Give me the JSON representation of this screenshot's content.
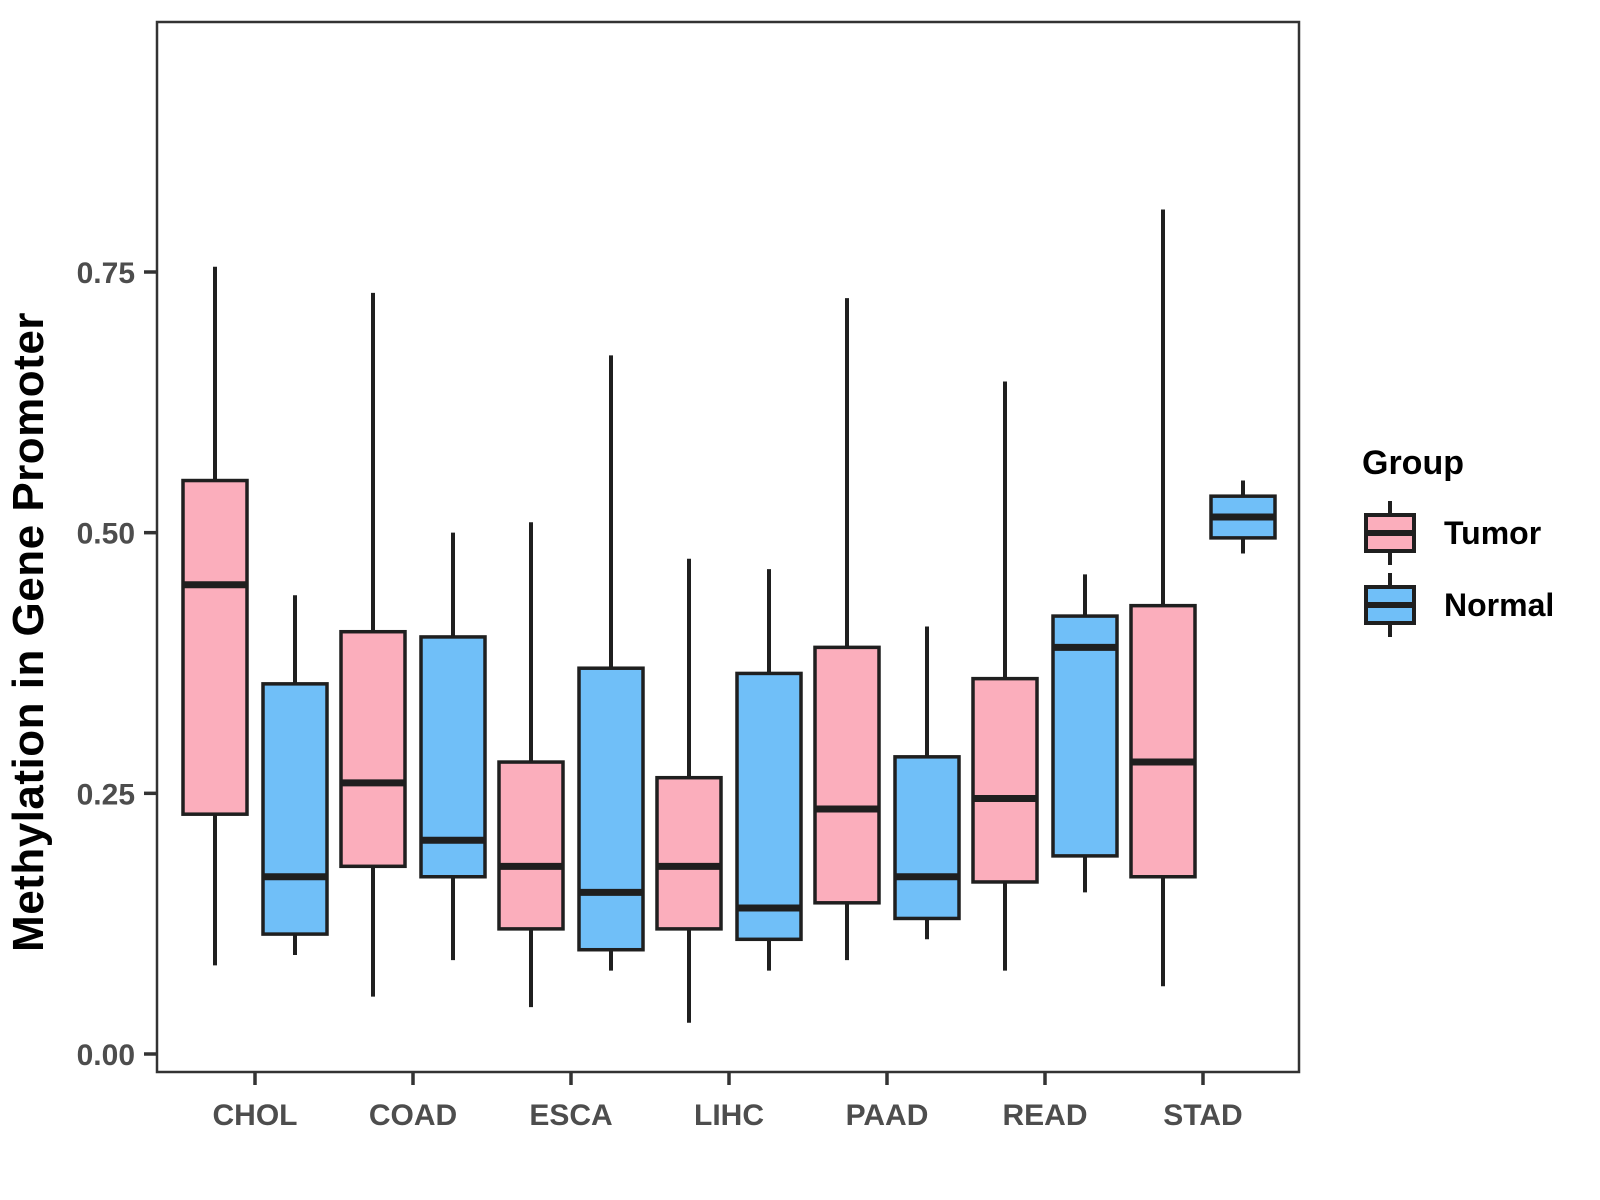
{
  "chart_data": {
    "type": "boxplot",
    "title": "",
    "xlabel": "",
    "ylabel": "Methylation in Gene Promoter",
    "categories": [
      "CHOL",
      "COAD",
      "ESCA",
      "LIHC",
      "PAAD",
      "READ",
      "STAD"
    ],
    "y_ticks": [
      0.0,
      0.25,
      0.5,
      0.75
    ],
    "y_tick_labels": [
      "0.00",
      "0.25",
      "0.50",
      "0.75"
    ],
    "ylim": [
      -0.02,
      0.99
    ],
    "grid": "off",
    "legend": {
      "title": "Group",
      "position": "right",
      "entries": [
        {
          "label": "Tumor",
          "color": "#FBAEBC"
        },
        {
          "label": "Normal",
          "color": "#70BFF8"
        }
      ]
    },
    "colors": {
      "tumor_fill": "#FBAEBC",
      "normal_fill": "#70BFF8",
      "line": "#1f1f1f",
      "panel_border": "#333333",
      "tick_label": "#4d4d4d"
    },
    "series": [
      {
        "name": "Tumor",
        "color": "#FBAEBC",
        "boxes": [
          {
            "category": "CHOL",
            "whisker_low": 0.085,
            "q1": 0.23,
            "median": 0.45,
            "q3": 0.55,
            "whisker_high": 0.755
          },
          {
            "category": "COAD",
            "whisker_low": 0.055,
            "q1": 0.18,
            "median": 0.26,
            "q3": 0.405,
            "whisker_high": 0.73
          },
          {
            "category": "ESCA",
            "whisker_low": 0.045,
            "q1": 0.12,
            "median": 0.18,
            "q3": 0.28,
            "whisker_high": 0.51
          },
          {
            "category": "LIHC",
            "whisker_low": 0.03,
            "q1": 0.12,
            "median": 0.18,
            "q3": 0.265,
            "whisker_high": 0.475
          },
          {
            "category": "PAAD",
            "whisker_low": 0.09,
            "q1": 0.145,
            "median": 0.235,
            "q3": 0.39,
            "whisker_high": 0.725
          },
          {
            "category": "READ",
            "whisker_low": 0.08,
            "q1": 0.165,
            "median": 0.245,
            "q3": 0.36,
            "whisker_high": 0.645
          },
          {
            "category": "STAD",
            "whisker_low": 0.065,
            "q1": 0.17,
            "median": 0.28,
            "q3": 0.43,
            "whisker_high": 0.81
          }
        ]
      },
      {
        "name": "Normal",
        "color": "#70BFF8",
        "boxes": [
          {
            "category": "CHOL",
            "whisker_low": 0.095,
            "q1": 0.115,
            "median": 0.17,
            "q3": 0.355,
            "whisker_high": 0.44
          },
          {
            "category": "COAD",
            "whisker_low": 0.09,
            "q1": 0.17,
            "median": 0.205,
            "q3": 0.4,
            "whisker_high": 0.5
          },
          {
            "category": "ESCA",
            "whisker_low": 0.08,
            "q1": 0.1,
            "median": 0.155,
            "q3": 0.37,
            "whisker_high": 0.67
          },
          {
            "category": "LIHC",
            "whisker_low": 0.08,
            "q1": 0.11,
            "median": 0.14,
            "q3": 0.365,
            "whisker_high": 0.465
          },
          {
            "category": "PAAD",
            "whisker_low": 0.11,
            "q1": 0.13,
            "median": 0.17,
            "q3": 0.285,
            "whisker_high": 0.41
          },
          {
            "category": "READ",
            "whisker_low": 0.155,
            "q1": 0.19,
            "median": 0.39,
            "q3": 0.42,
            "whisker_high": 0.46
          },
          {
            "category": "STAD",
            "whisker_low": 0.48,
            "q1": 0.495,
            "median": 0.515,
            "q3": 0.535,
            "whisker_high": 0.55
          }
        ]
      }
    ]
  }
}
